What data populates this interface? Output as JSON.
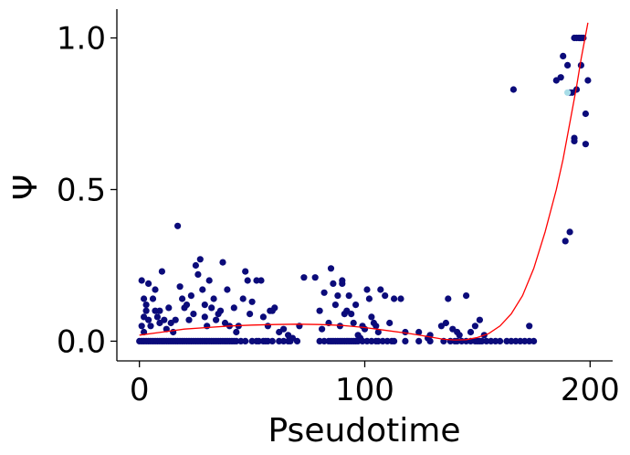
{
  "chart_data": {
    "type": "scatter",
    "xlabel": "Pseudotime",
    "ylabel": "Ψ",
    "xlim": [
      -10,
      210
    ],
    "ylim": [
      -0.065,
      1.095
    ],
    "xticks": [
      0,
      100,
      200
    ],
    "xtick_labels": [
      "0",
      "100",
      "200"
    ],
    "yticks": [
      0.0,
      0.5,
      1.0
    ],
    "ytick_labels": [
      "0.0",
      "0.5",
      "1.0"
    ],
    "grid": false,
    "legend": "none",
    "colors": {
      "points": "#0b0b7a",
      "highlight_points": "#a8dde8",
      "fit_curve": "#ff0000",
      "axis": "#000000"
    },
    "series": [
      {
        "kind": "points",
        "points": [
          [
            1,
            0.2
          ],
          [
            2,
            0.14
          ],
          [
            2,
            0.08
          ],
          [
            1,
            0.05
          ],
          [
            3,
            0.1
          ],
          [
            2,
            0.03
          ],
          [
            4,
            0.19
          ],
          [
            4,
            0.07
          ],
          [
            5,
            0.05
          ],
          [
            3,
            0.12
          ],
          [
            6,
            0.14
          ],
          [
            7,
            0.17
          ],
          [
            7,
            0.1
          ],
          [
            8,
            0.08
          ],
          [
            9,
            0.06
          ],
          [
            9,
            0.1
          ],
          [
            10,
            0.23
          ],
          [
            11,
            0.07
          ],
          [
            12,
            0.04
          ],
          [
            13,
            0.11
          ],
          [
            14,
            0.06
          ],
          [
            15,
            0.03
          ],
          [
            16,
            0.07
          ],
          [
            17,
            0.38
          ],
          [
            18,
            0.18
          ],
          [
            19,
            0.14
          ],
          [
            20,
            0.11
          ],
          [
            21,
            0.12
          ],
          [
            22,
            0.07
          ],
          [
            23,
            0.15
          ],
          [
            24,
            0.09
          ],
          [
            25,
            0.25
          ],
          [
            26,
            0.22
          ],
          [
            27,
            0.27
          ],
          [
            28,
            0.17
          ],
          [
            29,
            0.12
          ],
          [
            29,
            0.08
          ],
          [
            30,
            0.05
          ],
          [
            31,
            0.2
          ],
          [
            32,
            0.11
          ],
          [
            33,
            0.14
          ],
          [
            34,
            0.07
          ],
          [
            35,
            0.09
          ],
          [
            36,
            0.1
          ],
          [
            37,
            0.26
          ],
          [
            38,
            0.06
          ],
          [
            39,
            0.17
          ],
          [
            40,
            0.05
          ],
          [
            42,
            0.11
          ],
          [
            43,
            0.03
          ],
          [
            44,
            0.05
          ],
          [
            46,
            0.14
          ],
          [
            47,
            0.23
          ],
          [
            48,
            0.2
          ],
          [
            49,
            0.09
          ],
          [
            50,
            0.13
          ],
          [
            52,
            0.2
          ],
          [
            54,
            0.2
          ],
          [
            55,
            0.08
          ],
          [
            57,
            0.05
          ],
          [
            58,
            0.1
          ],
          [
            59,
            0.1
          ],
          [
            60,
            0.11
          ],
          [
            62,
            0.03
          ],
          [
            64,
            0.04
          ],
          [
            66,
            0.02
          ],
          [
            68,
            0.01
          ],
          [
            71,
            0.05
          ],
          [
            73,
            0.21
          ],
          [
            78,
            0.21
          ],
          [
            80,
            0.1
          ],
          [
            81,
            0.04
          ],
          [
            82,
            0.16
          ],
          [
            84,
            0.06
          ],
          [
            85,
            0.24
          ],
          [
            86,
            0.19
          ],
          [
            87,
            0.12
          ],
          [
            88,
            0.15
          ],
          [
            89,
            0.05
          ],
          [
            90,
            0.19
          ],
          [
            90,
            0.2
          ],
          [
            91,
            0.09
          ],
          [
            92,
            0.1
          ],
          [
            93,
            0.15
          ],
          [
            94,
            0.09
          ],
          [
            95,
            0.06
          ],
          [
            96,
            0.12
          ],
          [
            97,
            0.02
          ],
          [
            98,
            0.01
          ],
          [
            99,
            0.05
          ],
          [
            100,
            0.04
          ],
          [
            101,
            0.17
          ],
          [
            102,
            0.14
          ],
          [
            103,
            0.08
          ],
          [
            104,
            0.06
          ],
          [
            105,
            0.05
          ],
          [
            106,
            0.03
          ],
          [
            107,
            0.17
          ],
          [
            109,
            0.15
          ],
          [
            111,
            0.06
          ],
          [
            113,
            0.14
          ],
          [
            116,
            0.14
          ],
          [
            118,
            0.03
          ],
          [
            124,
            0.03
          ],
          [
            128,
            0.01
          ],
          [
            129,
            0.02
          ],
          [
            134,
            0.05
          ],
          [
            136,
            0.06
          ],
          [
            137,
            0.14
          ],
          [
            139,
            0.04
          ],
          [
            141,
            0.03
          ],
          [
            142,
            0.02
          ],
          [
            145,
            0.15
          ],
          [
            147,
            0.03
          ],
          [
            149,
            0.05
          ],
          [
            151,
            0.07
          ],
          [
            153,
            0.02
          ],
          [
            166,
            0.83
          ],
          [
            173,
            0.05
          ],
          [
            185,
            0.86
          ],
          [
            187,
            0.87
          ],
          [
            188,
            0.94
          ],
          [
            189,
            0.33
          ],
          [
            190,
            0.91
          ],
          [
            191,
            0.36
          ],
          [
            191,
            0.82
          ],
          [
            192,
            0.82
          ],
          [
            193,
            0.67
          ],
          [
            193,
            0.66
          ],
          [
            193,
            1.0
          ],
          [
            194,
            1.0
          ],
          [
            194,
            0.83
          ],
          [
            195,
            1.0
          ],
          [
            196,
            1.0
          ],
          [
            196,
            0.91
          ],
          [
            197,
            1.0
          ],
          [
            198,
            0.75
          ],
          [
            198,
            0.65
          ],
          [
            199,
            0.86
          ]
        ],
        "zero_x": [
          0,
          1,
          2,
          3,
          4,
          5,
          6,
          7,
          8,
          9,
          10,
          11,
          12,
          13,
          14,
          15,
          16,
          17,
          18,
          19,
          20,
          21,
          22,
          23,
          24,
          25,
          26,
          27,
          28,
          29,
          30,
          31,
          32,
          33,
          34,
          35,
          36,
          37,
          38,
          39,
          40,
          41,
          42,
          43,
          45,
          47,
          50,
          52,
          53,
          55,
          56,
          57,
          59,
          62,
          64,
          66,
          67,
          70,
          80,
          82,
          84,
          85,
          86,
          87,
          88,
          89,
          90,
          91,
          92,
          93,
          94,
          95,
          96,
          97,
          99,
          101,
          103,
          105,
          106,
          108,
          110,
          112,
          113,
          118,
          124,
          129,
          135,
          138,
          140,
          141,
          143,
          145,
          147,
          149,
          150,
          151,
          152,
          154,
          156,
          158,
          160,
          163,
          165,
          167,
          169,
          171,
          173,
          175
        ]
      },
      {
        "kind": "highlight_points",
        "points": [
          [
            190,
            0.82
          ]
        ]
      },
      {
        "kind": "fit_curve",
        "points": [
          [
            0,
            0.02
          ],
          [
            10,
            0.03
          ],
          [
            20,
            0.04
          ],
          [
            30,
            0.045
          ],
          [
            40,
            0.05
          ],
          [
            50,
            0.053
          ],
          [
            60,
            0.055
          ],
          [
            70,
            0.056
          ],
          [
            80,
            0.055
          ],
          [
            90,
            0.052
          ],
          [
            100,
            0.045
          ],
          [
            110,
            0.035
          ],
          [
            120,
            0.025
          ],
          [
            128,
            0.015
          ],
          [
            135,
            0.006
          ],
          [
            140,
            0.004
          ],
          [
            145,
            0.005
          ],
          [
            150,
            0.012
          ],
          [
            155,
            0.025
          ],
          [
            160,
            0.05
          ],
          [
            165,
            0.09
          ],
          [
            170,
            0.15
          ],
          [
            175,
            0.24
          ],
          [
            180,
            0.36
          ],
          [
            185,
            0.5
          ],
          [
            188,
            0.6
          ],
          [
            191,
            0.72
          ],
          [
            194,
            0.84
          ],
          [
            196,
            0.93
          ],
          [
            198,
            1.01
          ],
          [
            199,
            1.05
          ]
        ]
      }
    ]
  }
}
